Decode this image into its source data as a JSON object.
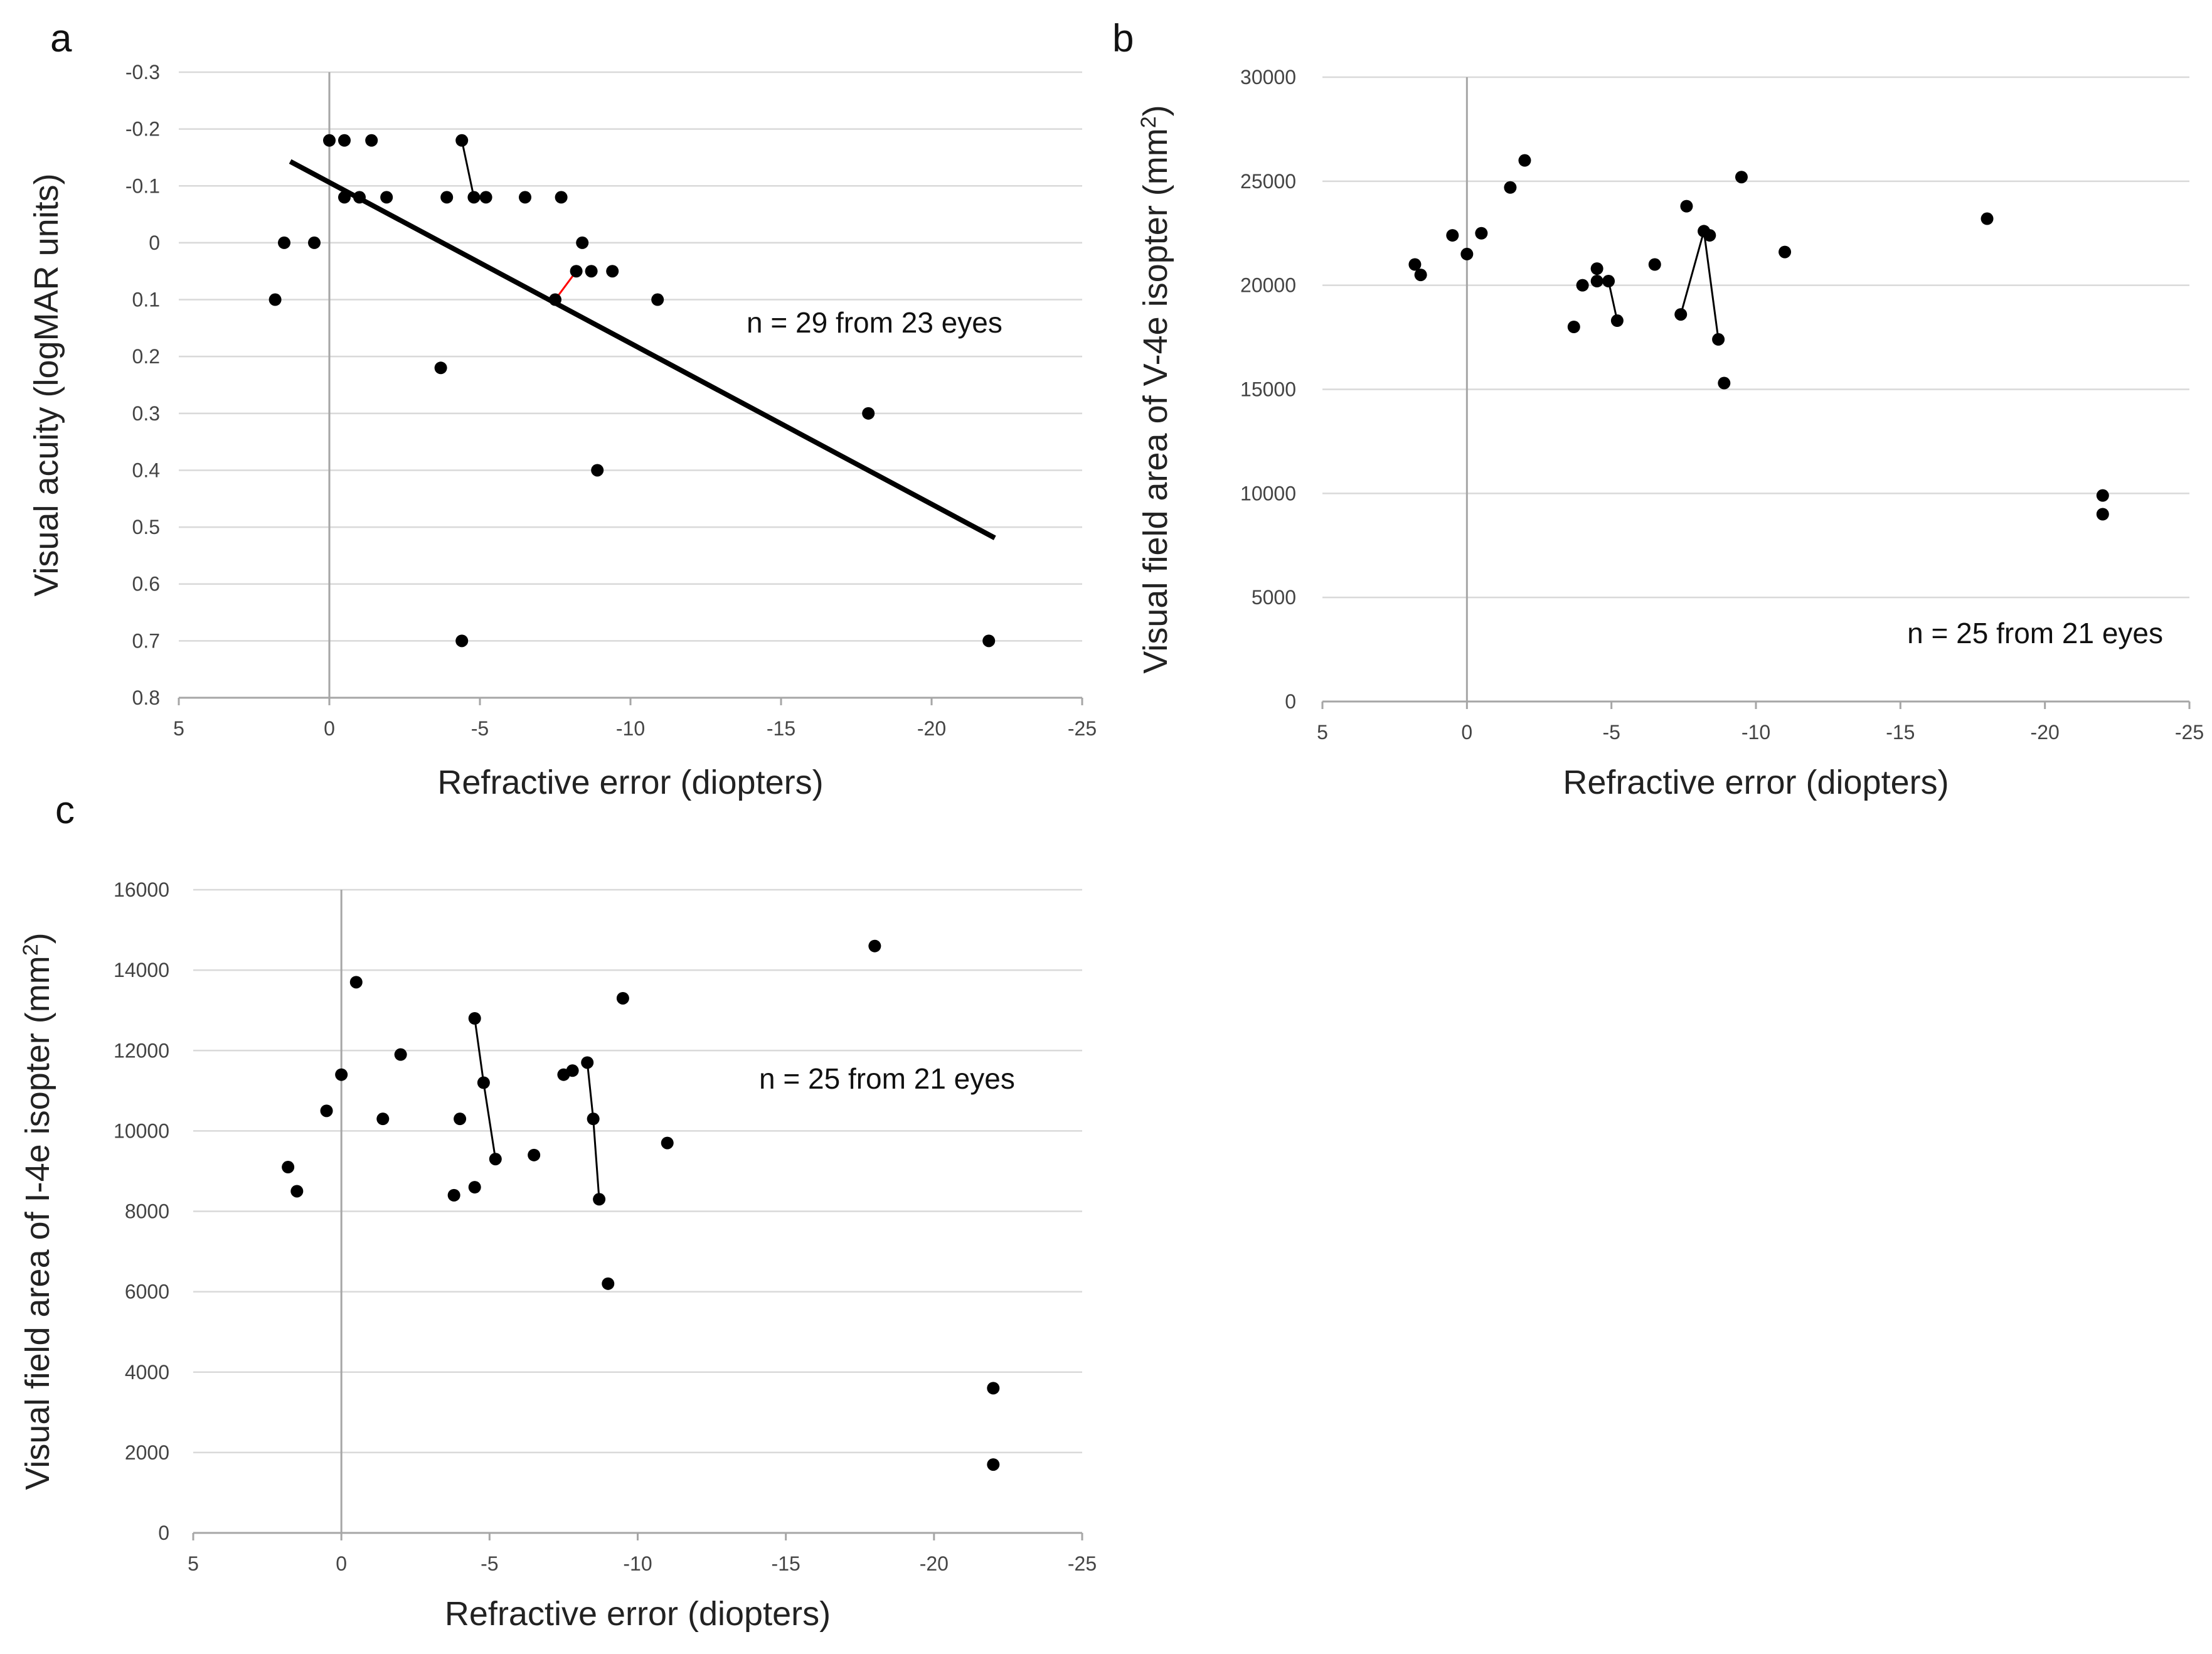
{
  "chart_data": [
    {
      "id": "a",
      "type": "scatter",
      "panel_label": "a",
      "title": "",
      "xlabel": "Refractive error (diopters)",
      "ylabel": "Visual acuity (logMAR units)",
      "xlim": [
        5,
        -25
      ],
      "ylim": [
        -0.3,
        0.8
      ],
      "y_inverted": true,
      "xticks": [
        5,
        0,
        -5,
        -10,
        -15,
        -20,
        -25
      ],
      "xtick_labels": [
        "5",
        "0",
        "-5",
        "-10",
        "-15",
        "-20",
        "-25"
      ],
      "yticks": [
        -0.3,
        -0.2,
        -0.1,
        0,
        0.1,
        0.2,
        0.3,
        0.4,
        0.5,
        0.6,
        0.7,
        0.8
      ],
      "ytick_labels": [
        "-0.3",
        "-0.2",
        "-0.1",
        "0",
        "0.1",
        "0.2",
        "0.3",
        "0.4",
        "0.5",
        "0.6",
        "0.7",
        "0.8"
      ],
      "gridlines": "horizontal",
      "annotation": "n = 29 from 23 eyes",
      "annotation_position": "right-middle",
      "points": [
        [
          1.8,
          0.1
        ],
        [
          1.5,
          0.0
        ],
        [
          0.5,
          0.0
        ],
        [
          0.0,
          -0.18
        ],
        [
          -0.5,
          -0.18
        ],
        [
          -0.5,
          -0.08
        ],
        [
          -1.0,
          -0.08
        ],
        [
          -1.4,
          -0.18
        ],
        [
          -1.9,
          -0.08
        ],
        [
          -4.4,
          -0.18
        ],
        [
          -3.9,
          -0.08
        ],
        [
          -4.8,
          -0.08
        ],
        [
          -5.2,
          -0.08
        ],
        [
          -6.5,
          -0.08
        ],
        [
          -7.7,
          -0.08
        ],
        [
          -3.7,
          0.22
        ],
        [
          -4.4,
          0.7
        ],
        [
          -7.5,
          0.1
        ],
        [
          -8.2,
          0.05
        ],
        [
          -8.4,
          0.0
        ],
        [
          -8.7,
          0.05
        ],
        [
          -9.4,
          0.05
        ],
        [
          -10.9,
          0.1
        ],
        [
          -8.9,
          0.4
        ],
        [
          -17.9,
          0.3
        ],
        [
          -21.9,
          0.7
        ]
      ],
      "connectors": [
        {
          "from": [
            -4.4,
            -0.18
          ],
          "to": [
            -4.8,
            -0.08
          ],
          "color": "#000000"
        },
        {
          "from": [
            -7.5,
            0.1
          ],
          "to": [
            -8.2,
            0.05
          ],
          "color": "#ff0000"
        }
      ],
      "trendline": {
        "from": [
          1.3,
          -0.143
        ],
        "to": [
          -22.1,
          0.519
        ],
        "color": "#000000"
      }
    },
    {
      "id": "b",
      "type": "scatter",
      "panel_label": "b",
      "title": "",
      "xlabel": "Refractive error (diopters)",
      "ylabel": "Visual field area of V-4e isopter (mm2)",
      "ylabel_text": "Visual field area of V-4e isopter (mm",
      "ylabel_sup": "2",
      "ylabel_tail": ")",
      "xlim": [
        5,
        -25
      ],
      "ylim": [
        0,
        30000
      ],
      "y_inverted": false,
      "xticks": [
        5,
        0,
        -5,
        -10,
        -15,
        -20,
        -25
      ],
      "xtick_labels": [
        "5",
        "0",
        "-5",
        "-10",
        "-15",
        "-20",
        "-25"
      ],
      "yticks": [
        0,
        5000,
        10000,
        15000,
        20000,
        25000,
        30000
      ],
      "ytick_labels": [
        "0",
        "5000",
        "10000",
        "15000",
        "20000",
        "25000",
        "30000"
      ],
      "gridlines": "horizontal",
      "annotation": "n = 25 from 21 eyes",
      "annotation_position": "bottom-right",
      "points": [
        [
          1.8,
          21000
        ],
        [
          1.6,
          20500
        ],
        [
          0.5,
          22400
        ],
        [
          0.0,
          21500
        ],
        [
          -0.5,
          22500
        ],
        [
          -1.5,
          24700
        ],
        [
          -2.0,
          26000
        ],
        [
          -3.7,
          18000
        ],
        [
          -4.0,
          20000
        ],
        [
          -4.5,
          20800
        ],
        [
          -4.5,
          20200
        ],
        [
          -4.9,
          20200
        ],
        [
          -5.2,
          18300
        ],
        [
          -6.5,
          21000
        ],
        [
          -7.4,
          18600
        ],
        [
          -7.6,
          23800
        ],
        [
          -8.2,
          22600
        ],
        [
          -8.4,
          22400
        ],
        [
          -8.7,
          17400
        ],
        [
          -8.9,
          15300
        ],
        [
          -9.5,
          25200
        ],
        [
          -11.0,
          21600
        ],
        [
          -18.0,
          23200
        ],
        [
          -22.0,
          9900
        ],
        [
          -22.0,
          9000
        ]
      ],
      "connectors": [
        {
          "from": [
            -4.9,
            20200
          ],
          "to": [
            -5.2,
            18300
          ],
          "color": "#000000"
        },
        {
          "from": [
            -7.4,
            18600
          ],
          "to": [
            -8.2,
            22600
          ],
          "color": "#000000"
        },
        {
          "from": [
            -8.2,
            22600
          ],
          "to": [
            -8.7,
            17400
          ],
          "color": "#000000"
        }
      ],
      "trendline": null
    },
    {
      "id": "c",
      "type": "scatter",
      "panel_label": "c",
      "title": "",
      "xlabel": "Refractive error (diopters)",
      "ylabel": "Visual field area of I-4e isopter (mm2)",
      "ylabel_text": "Visual field area of I-4e isopter (mm",
      "ylabel_sup": "2",
      "ylabel_tail": ")",
      "xlim": [
        5,
        -25
      ],
      "ylim": [
        0,
        16000
      ],
      "y_inverted": false,
      "xticks": [
        5,
        0,
        -5,
        -10,
        -15,
        -20,
        -25
      ],
      "xtick_labels": [
        "5",
        "0",
        "-5",
        "-10",
        "-15",
        "-20",
        "-25"
      ],
      "yticks": [
        0,
        2000,
        4000,
        6000,
        8000,
        10000,
        12000,
        14000,
        16000
      ],
      "ytick_labels": [
        "0",
        "2000",
        "4000",
        "6000",
        "8000",
        "10000",
        "12000",
        "14000",
        "16000"
      ],
      "gridlines": "horizontal",
      "annotation": "n = 25 from 21 eyes",
      "annotation_position": "right-upper",
      "points": [
        [
          1.8,
          9100
        ],
        [
          1.5,
          8500
        ],
        [
          0.5,
          10500
        ],
        [
          0.0,
          11400
        ],
        [
          -0.5,
          13700
        ],
        [
          -1.4,
          10300
        ],
        [
          -2.0,
          11900
        ],
        [
          -3.8,
          8400
        ],
        [
          -4.0,
          10300
        ],
        [
          -4.5,
          12800
        ],
        [
          -4.5,
          8600
        ],
        [
          -4.8,
          11200
        ],
        [
          -5.2,
          9300
        ],
        [
          -6.5,
          9400
        ],
        [
          -7.5,
          11400
        ],
        [
          -7.8,
          11500
        ],
        [
          -8.3,
          11700
        ],
        [
          -8.5,
          10300
        ],
        [
          -8.7,
          8300
        ],
        [
          -9.0,
          6200
        ],
        [
          -9.5,
          13300
        ],
        [
          -11.0,
          9700
        ],
        [
          -18.0,
          14600
        ],
        [
          -22.0,
          3600
        ],
        [
          -22.0,
          1700
        ]
      ],
      "connectors": [
        {
          "from": [
            -4.5,
            12800
          ],
          "to": [
            -4.8,
            11200
          ],
          "color": "#000000"
        },
        {
          "from": [
            -4.8,
            11200
          ],
          "to": [
            -5.2,
            9300
          ],
          "color": "#000000"
        },
        {
          "from": [
            -8.3,
            11700
          ],
          "to": [
            -8.5,
            10300
          ],
          "color": "#000000"
        },
        {
          "from": [
            -8.5,
            10300
          ],
          "to": [
            -8.7,
            8300
          ],
          "color": "#000000"
        }
      ],
      "trendline": null
    }
  ]
}
